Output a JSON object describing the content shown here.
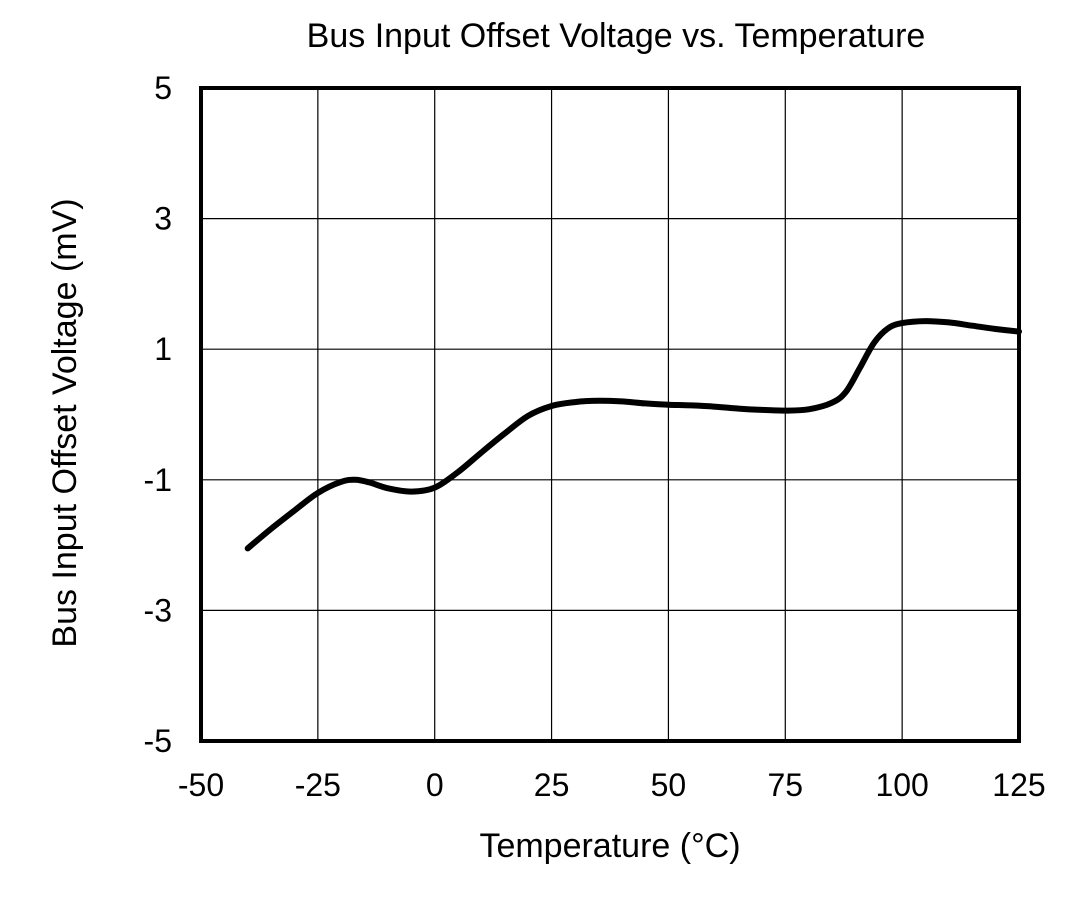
{
  "chart_data": {
    "type": "line",
    "title": "Bus Input Offset Voltage vs. Temperature",
    "xlabel": "Temperature (°C)",
    "ylabel": "Bus Input Offset Voltage (mV)",
    "xlim": [
      -50,
      125
    ],
    "ylim": [
      -5,
      5
    ],
    "x_ticks": [
      -50,
      -25,
      0,
      25,
      50,
      75,
      100,
      125
    ],
    "x_tick_labels": [
      "-50",
      "-25",
      "0",
      "25",
      "50",
      "75",
      "100",
      "125"
    ],
    "y_ticks": [
      5,
      3,
      1,
      -1,
      -3,
      -5
    ],
    "y_tick_labels": [
      "5",
      "3",
      "1",
      "-1",
      "-3",
      "-5"
    ],
    "grid": true,
    "series": [
      {
        "x": [
          -40,
          -35,
          -30,
          -25,
          -20,
          -17,
          -14,
          -10,
          -5,
          0,
          5,
          10,
          15,
          20,
          25,
          30,
          35,
          40,
          45,
          50,
          55,
          60,
          65,
          70,
          75,
          80,
          85,
          88,
          91,
          94,
          97,
          100,
          105,
          110,
          115,
          120,
          125
        ],
        "values": [
          -2.05,
          -1.75,
          -1.47,
          -1.2,
          -1.03,
          -1.0,
          -1.04,
          -1.13,
          -1.18,
          -1.12,
          -0.88,
          -0.58,
          -0.29,
          -0.02,
          0.13,
          0.19,
          0.21,
          0.2,
          0.17,
          0.15,
          0.14,
          0.12,
          0.09,
          0.07,
          0.06,
          0.08,
          0.18,
          0.35,
          0.72,
          1.1,
          1.32,
          1.4,
          1.43,
          1.41,
          1.36,
          1.31,
          1.27
        ],
        "color": "#000000"
      }
    ]
  }
}
